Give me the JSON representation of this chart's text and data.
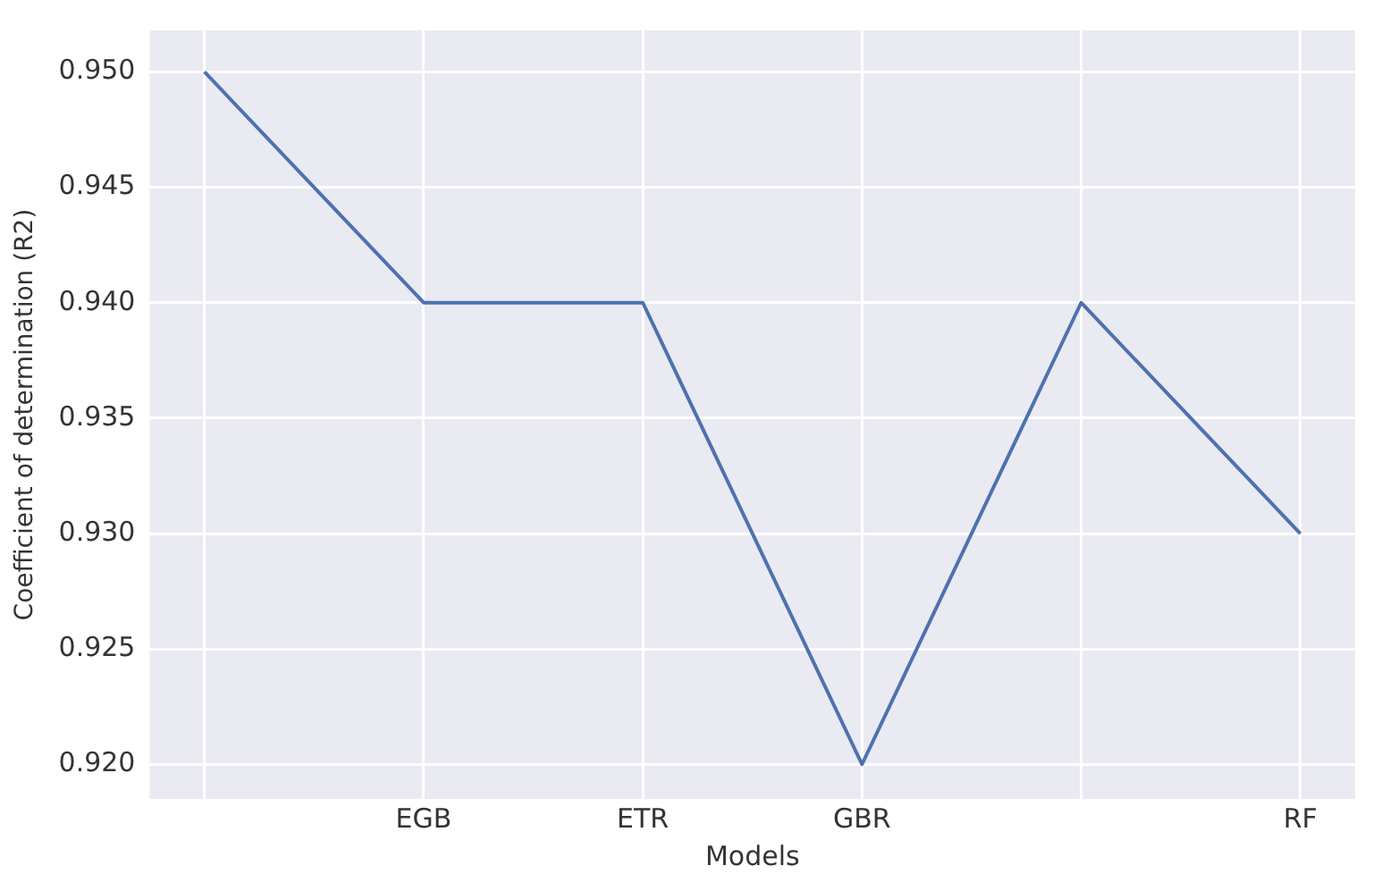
{
  "chart_data": {
    "type": "line",
    "xlabel": "Models",
    "ylabel": "Coefficient of determination (R2)",
    "categories": [
      null,
      "EGB",
      "ETR",
      "GBR",
      null,
      "RF"
    ],
    "series": [
      {
        "color": "#4c72b0",
        "values": [
          0.95,
          0.94,
          0.94,
          0.92,
          0.94,
          0.93
        ]
      }
    ],
    "ylim": [
      0.9185,
      0.9518
    ],
    "yticks": [
      {
        "value": 0.92,
        "label": "0.920"
      },
      {
        "value": 0.925,
        "label": "0.925"
      },
      {
        "value": 0.93,
        "label": "0.930"
      },
      {
        "value": 0.935,
        "label": "0.935"
      },
      {
        "value": 0.94,
        "label": "0.940"
      },
      {
        "value": 0.945,
        "label": "0.945"
      },
      {
        "value": 0.95,
        "label": "0.950"
      }
    ],
    "grid": true,
    "legend": false,
    "marker": "none",
    "line_style": "solid"
  }
}
